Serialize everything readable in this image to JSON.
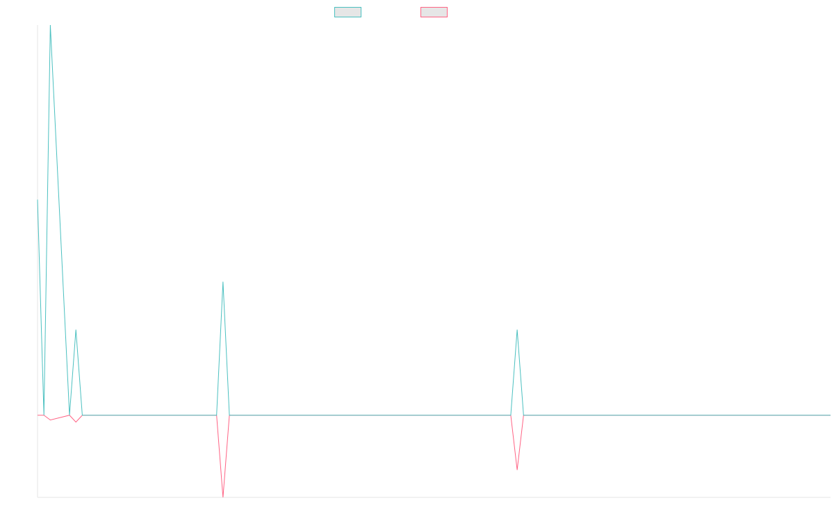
{
  "chart_data": {
    "type": "line",
    "title": "",
    "xlabel": "",
    "ylabel": "",
    "legend_position": "top-center",
    "grid": false,
    "x": [
      0,
      1,
      2,
      5,
      6,
      7,
      28,
      29,
      30,
      74,
      75,
      76,
      124
    ],
    "ylim": [
      -1.2,
      5.7
    ],
    "series": [
      {
        "color": "#4bc0c0",
        "values": [
          3.15,
          0,
          5.7,
          0,
          1.25,
          0,
          0,
          1.95,
          0,
          0,
          1.25,
          0,
          0
        ]
      },
      {
        "color": "#ff6384",
        "values": [
          0,
          0,
          -0.07,
          0,
          -0.1,
          0,
          0,
          -1.2,
          0,
          0,
          -0.8,
          0,
          0
        ]
      }
    ]
  }
}
